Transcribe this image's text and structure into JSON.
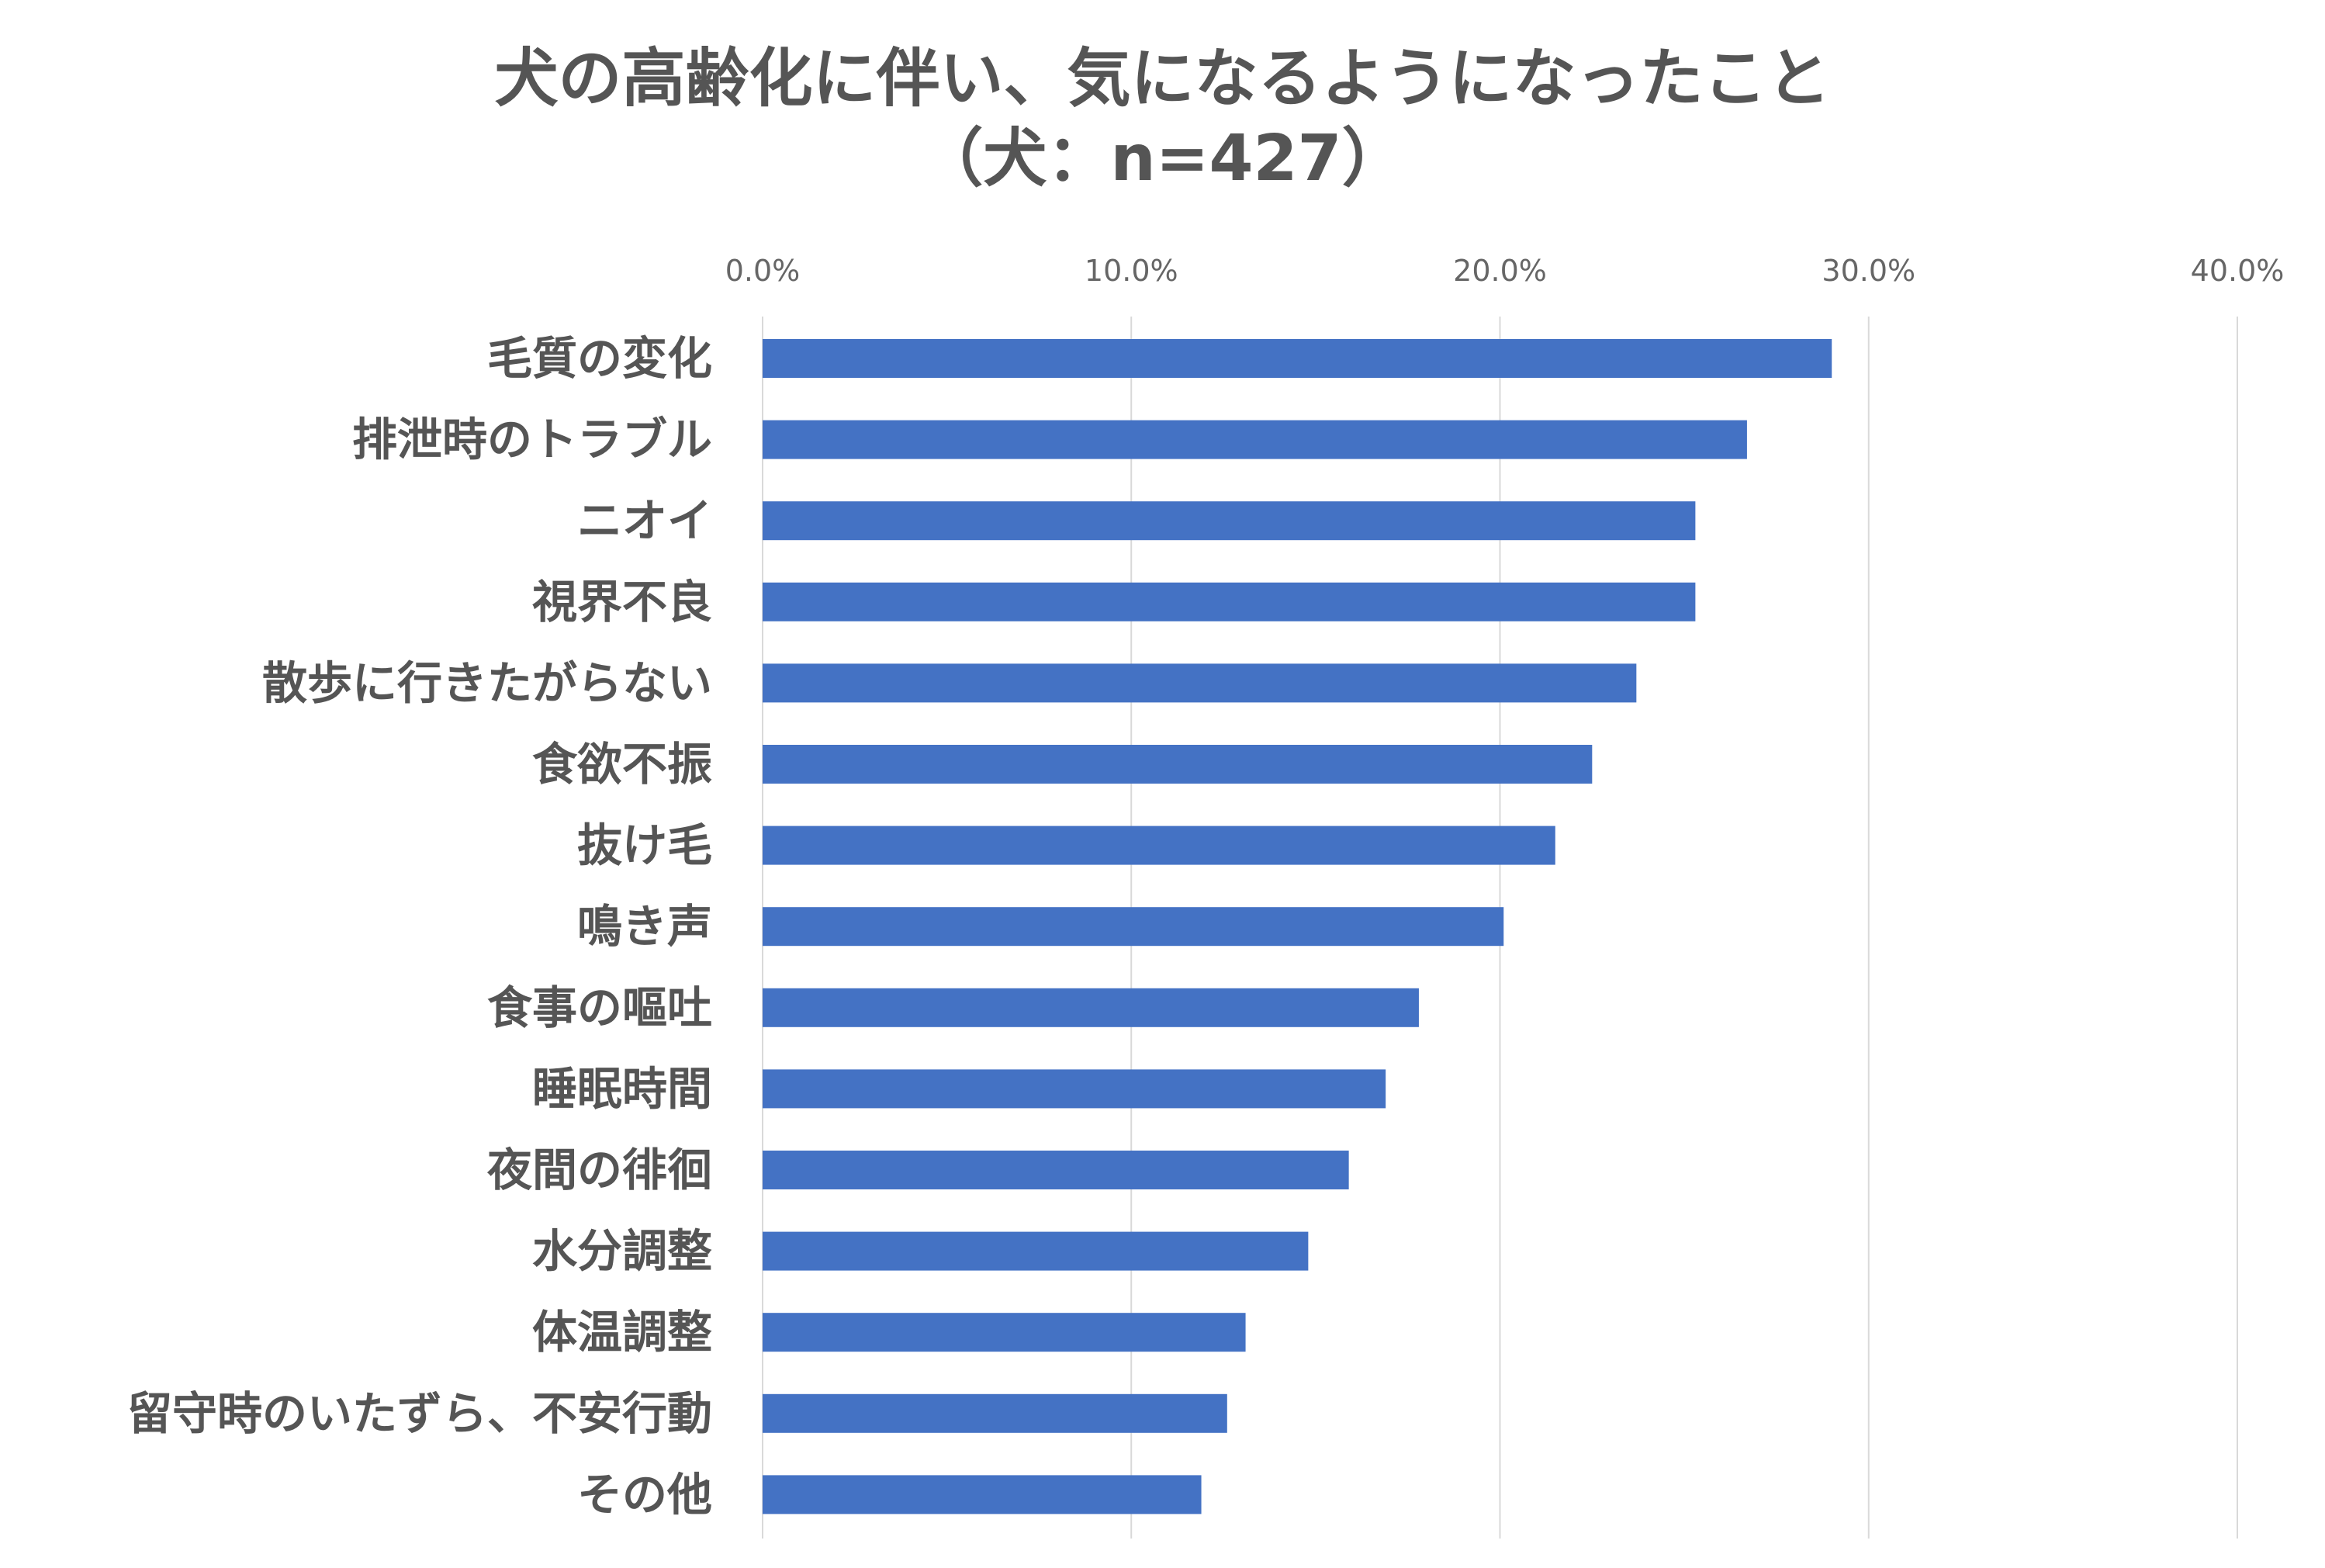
{
  "chart_data": {
    "type": "bar",
    "orientation": "horizontal",
    "title": "犬の高齢化に伴い、気になるようになったこと",
    "subtitle": "（犬：n=427）",
    "categories": [
      "毛質の変化",
      "排泄時のトラブル",
      "ニオイ",
      "視界不良",
      "散歩に行きたがらない",
      "食欲不振",
      "抜け毛",
      "鳴き声",
      "食事の嘔吐",
      "睡眠時間",
      "夜間の徘徊",
      "水分調整",
      "体温調整",
      "留守時のいたずら、不安行動",
      "その他"
    ],
    "values": [
      29.0,
      26.7,
      25.3,
      25.3,
      23.7,
      22.5,
      21.5,
      20.1,
      17.8,
      16.9,
      15.9,
      14.8,
      13.1,
      12.6,
      11.9
    ],
    "unit": "%",
    "xlim": [
      0,
      40
    ],
    "ticks": [
      "0.0%",
      "10.0%",
      "20.0%",
      "30.0%",
      "40.0%"
    ],
    "tick_values": [
      0,
      10,
      20,
      30,
      40
    ],
    "xlabel": "",
    "ylabel": "",
    "grid": true,
    "axis_position": "top",
    "colors": {
      "bar": "#4472C4",
      "grid": "#D9D9D9",
      "title": "#555555",
      "category_label": "#555555",
      "tick_label": "#666666"
    }
  }
}
